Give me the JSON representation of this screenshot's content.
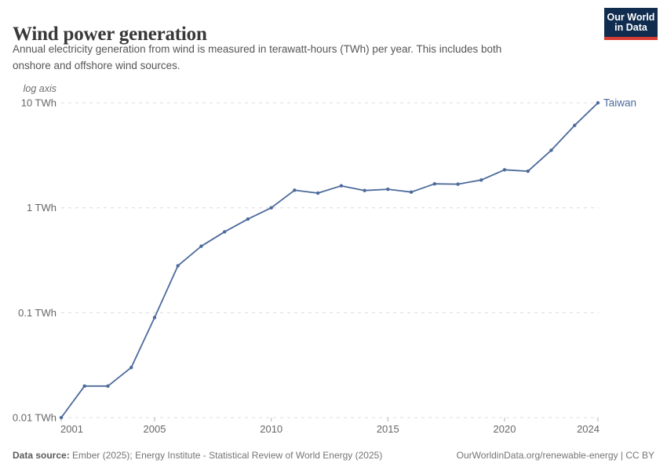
{
  "header": {
    "title": "Wind power generation",
    "subtitle_line1": "Annual electricity generation from wind is measured in terawatt-hours (TWh) per year. This includes both",
    "subtitle_line2": "onshore and offshore wind sources.",
    "logo": {
      "line1": "Our World",
      "line2": "in Data",
      "bg_color": "#102d4f",
      "accent_color": "#d73c32"
    }
  },
  "chart_data": {
    "type": "line",
    "title": "Wind power generation",
    "yscale": "log",
    "axis_note": "log axis",
    "unit": "TWh",
    "grid": true,
    "xlim": [
      2001,
      2024
    ],
    "ylim": [
      0.01,
      10
    ],
    "x": [
      2001,
      2002,
      2003,
      2004,
      2005,
      2006,
      2007,
      2008,
      2009,
      2010,
      2011,
      2012,
      2013,
      2014,
      2015,
      2016,
      2017,
      2018,
      2019,
      2020,
      2021,
      2022,
      2023,
      2024
    ],
    "series": [
      {
        "name": "Taiwan",
        "color": "#4c6a9c",
        "values": [
          0.01,
          0.02,
          0.02,
          0.03,
          0.09,
          0.28,
          0.43,
          0.59,
          0.78,
          1.0,
          1.47,
          1.38,
          1.62,
          1.46,
          1.5,
          1.41,
          1.69,
          1.68,
          1.84,
          2.3,
          2.23,
          3.53,
          6.1,
          10.0
        ]
      }
    ],
    "xticks": [
      {
        "v": 2001,
        "label": "2001"
      },
      {
        "v": 2005,
        "label": "2005"
      },
      {
        "v": 2010,
        "label": "2010"
      },
      {
        "v": 2015,
        "label": "2015"
      },
      {
        "v": 2020,
        "label": "2020"
      },
      {
        "v": 2024,
        "label": "2024"
      }
    ],
    "yticks": [
      {
        "v": 0.01,
        "label": "0.01 TWh"
      },
      {
        "v": 0.1,
        "label": "0.1 TWh"
      },
      {
        "v": 1,
        "label": "1 TWh"
      },
      {
        "v": 10,
        "label": "10 TWh"
      }
    ],
    "legend_position": "end-of-line"
  },
  "footer": {
    "source_label": "Data source:",
    "source_text": "Ember (2025); Energy Institute - Statistical Review of World Energy (2025)",
    "right_text": "OurWorldinData.org/renewable-energy | CC BY"
  }
}
